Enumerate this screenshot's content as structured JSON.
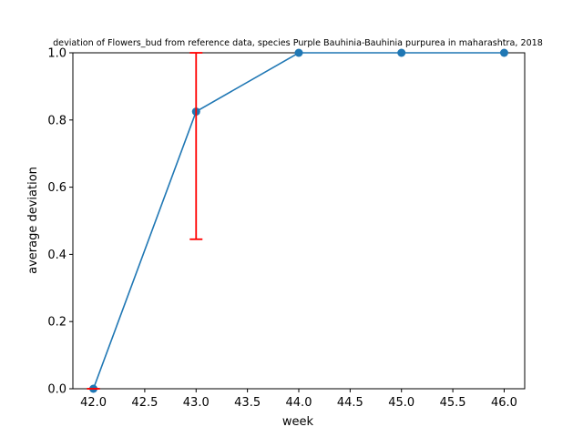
{
  "chart_data": {
    "type": "line",
    "title": "deviation of Flowers_bud from reference data, species Purple Bauhinia-Bauhinia purpurea in maharashtra, 2018",
    "xlabel": "week",
    "ylabel": "average deviation",
    "xlim": [
      41.8,
      46.2
    ],
    "ylim": [
      0.0,
      1.0
    ],
    "xticks": [
      "42.0",
      "42.5",
      "43.0",
      "43.5",
      "44.0",
      "44.5",
      "45.0",
      "45.5",
      "46.0"
    ],
    "yticks": [
      "0.0",
      "0.2",
      "0.4",
      "0.6",
      "0.8",
      "1.0"
    ],
    "grid": false,
    "series": [
      {
        "x": [
          42,
          43,
          44,
          45,
          46
        ],
        "y": [
          0.0,
          0.825,
          1.0,
          1.0,
          1.0
        ],
        "color": "#1f77b4"
      }
    ],
    "error_bars": [
      {
        "x": 42,
        "low": 0.0,
        "high": 0.0,
        "color": "#ff0000"
      },
      {
        "x": 43,
        "low": 0.445,
        "high": 1.0,
        "color": "#ff0000"
      }
    ]
  }
}
